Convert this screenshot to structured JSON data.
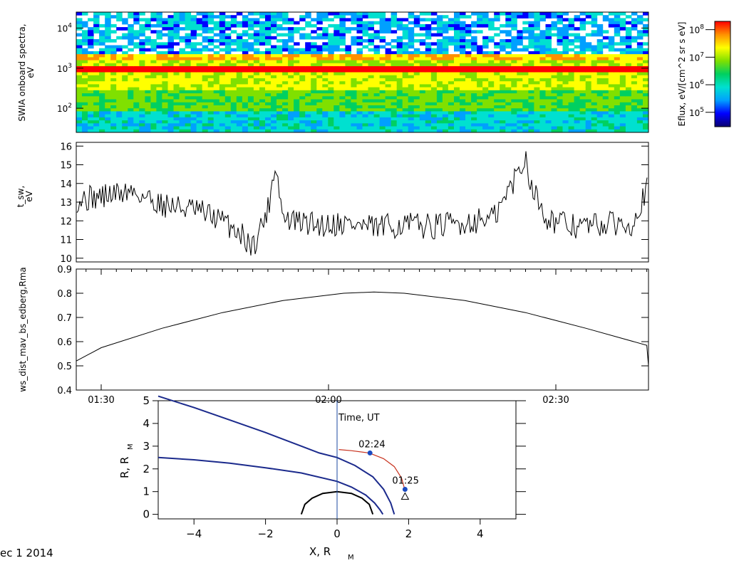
{
  "chart_data": [
    {
      "type": "heatmap",
      "ylabel": "SWIA onboard spectra,",
      "yunit": "eV",
      "y_scale": "log",
      "ylim": [
        25,
        25000
      ],
      "yticks": [
        {
          "value": 100,
          "base": "10",
          "exp": "2"
        },
        {
          "value": 1000,
          "base": "10",
          "exp": "3"
        },
        {
          "value": 10000,
          "base": "10",
          "exp": "4"
        }
      ],
      "colorbar": {
        "label": "Eflux, eV/[cm^2 sr s eV]",
        "scale": "log",
        "range": [
          30000,
          200000000
        ],
        "colors": [
          "#0a0070",
          "#0000ff",
          "#00a0ff",
          "#00e0d0",
          "#00d060",
          "#80e000",
          "#ffff00",
          "#ff9000",
          "#ff0000"
        ],
        "ticks": [
          {
            "value": 100000,
            "base": "10",
            "exp": "5"
          },
          {
            "value": 1000000,
            "base": "10",
            "exp": "6"
          },
          {
            "value": 10000000,
            "base": "10",
            "exp": "7"
          },
          {
            "value": 100000000,
            "base": "10",
            "exp": "8"
          }
        ]
      }
    },
    {
      "type": "line",
      "ylabel": "t_sw,",
      "yunit": "eV",
      "ylim": [
        9.8,
        16.2
      ],
      "yticks": [
        10,
        11,
        12,
        13,
        14,
        15,
        16
      ],
      "x": [
        "01:22",
        "01:26",
        "01:30",
        "01:34",
        "01:38",
        "01:42",
        "01:45",
        "01:48",
        "01:50",
        "01:52",
        "01:53",
        "01:54",
        "01:56",
        "01:59",
        "02:02",
        "02:06",
        "02:10",
        "02:14",
        "02:18",
        "02:22",
        "02:25",
        "02:26",
        "02:27",
        "02:29",
        "02:32",
        "02:36",
        "02:40",
        "02:42",
        "02:43",
        "02:46",
        "02:50"
      ],
      "y": [
        13.4,
        13.1,
        13.3,
        13.6,
        12.9,
        12.6,
        12.2,
        11.5,
        10.6,
        12.6,
        15.2,
        12.1,
        11.9,
        11.8,
        11.9,
        11.6,
        11.8,
        11.7,
        11.9,
        12.2,
        14.6,
        15.4,
        13.6,
        12.1,
        11.7,
        11.8,
        11.9,
        13.7,
        13.0,
        12.6,
        11.8
      ]
    },
    {
      "type": "line",
      "ylabel": "ws_dist_mav_bs_edberg,Rma",
      "ylim": [
        0.4,
        0.9
      ],
      "yticks": [
        "0.4",
        "0.5",
        "0.6",
        "0.7",
        "0.8",
        "0.9"
      ],
      "x": [
        "01:22",
        "01:30",
        "01:38",
        "01:46",
        "01:54",
        "02:02",
        "02:06",
        "02:10",
        "02:18",
        "02:26",
        "02:34",
        "02:42",
        "02:50"
      ],
      "y": [
        0.52,
        0.575,
        0.655,
        0.72,
        0.77,
        0.8,
        0.805,
        0.8,
        0.77,
        0.72,
        0.655,
        0.585,
        0.5
      ],
      "xticks": [
        "01:30",
        "02:00",
        "02:30"
      ],
      "xlabel": "Time, UT"
    },
    {
      "type": "line",
      "xlabel": "X, R",
      "xlabel_sub": "M",
      "ylabel": "R, R",
      "ylabel_sub": "M",
      "xlim": [
        -5,
        5
      ],
      "ylim": [
        -0.2,
        5
      ],
      "xticks": [
        -4,
        -2,
        0,
        2,
        4
      ],
      "yticks": [
        0,
        1,
        2,
        3,
        4,
        5
      ],
      "series": [
        {
          "x": [
            -5,
            -4,
            -3,
            -2,
            -1,
            -0.5,
            0,
            0.5,
            1,
            1.3,
            1.5,
            1.6
          ],
          "y": [
            5.2,
            4.7,
            4.15,
            3.6,
            3.0,
            2.7,
            2.5,
            2.15,
            1.65,
            1.1,
            0.5,
            0
          ]
        },
        {
          "x": [
            -5,
            -4,
            -3,
            -2,
            -1,
            0,
            0.4,
            0.8,
            1.05,
            1.2,
            1.28
          ],
          "y": [
            2.5,
            2.4,
            2.25,
            2.05,
            1.82,
            1.45,
            1.2,
            0.85,
            0.5,
            0.2,
            0
          ]
        },
        {
          "x": [
            -1,
            -0.9,
            -0.7,
            -0.4,
            0,
            0.4,
            0.7,
            0.9,
            1
          ],
          "y": [
            0,
            0.44,
            0.71,
            0.92,
            1,
            0.92,
            0.71,
            0.44,
            0
          ]
        },
        {
          "x": [
            0.05,
            0.4,
            0.9,
            1.3,
            1.6,
            1.8,
            1.9
          ],
          "y": [
            2.85,
            2.8,
            2.7,
            2.45,
            2.1,
            1.6,
            1.05
          ]
        }
      ],
      "orbit_markers": [
        {
          "label": "02:24",
          "x": 0.92,
          "y": 2.7
        },
        {
          "label": "01:25",
          "x": 1.9,
          "y": 1.1
        }
      ]
    }
  ],
  "footer": {
    "date": "ec  1 2014"
  }
}
